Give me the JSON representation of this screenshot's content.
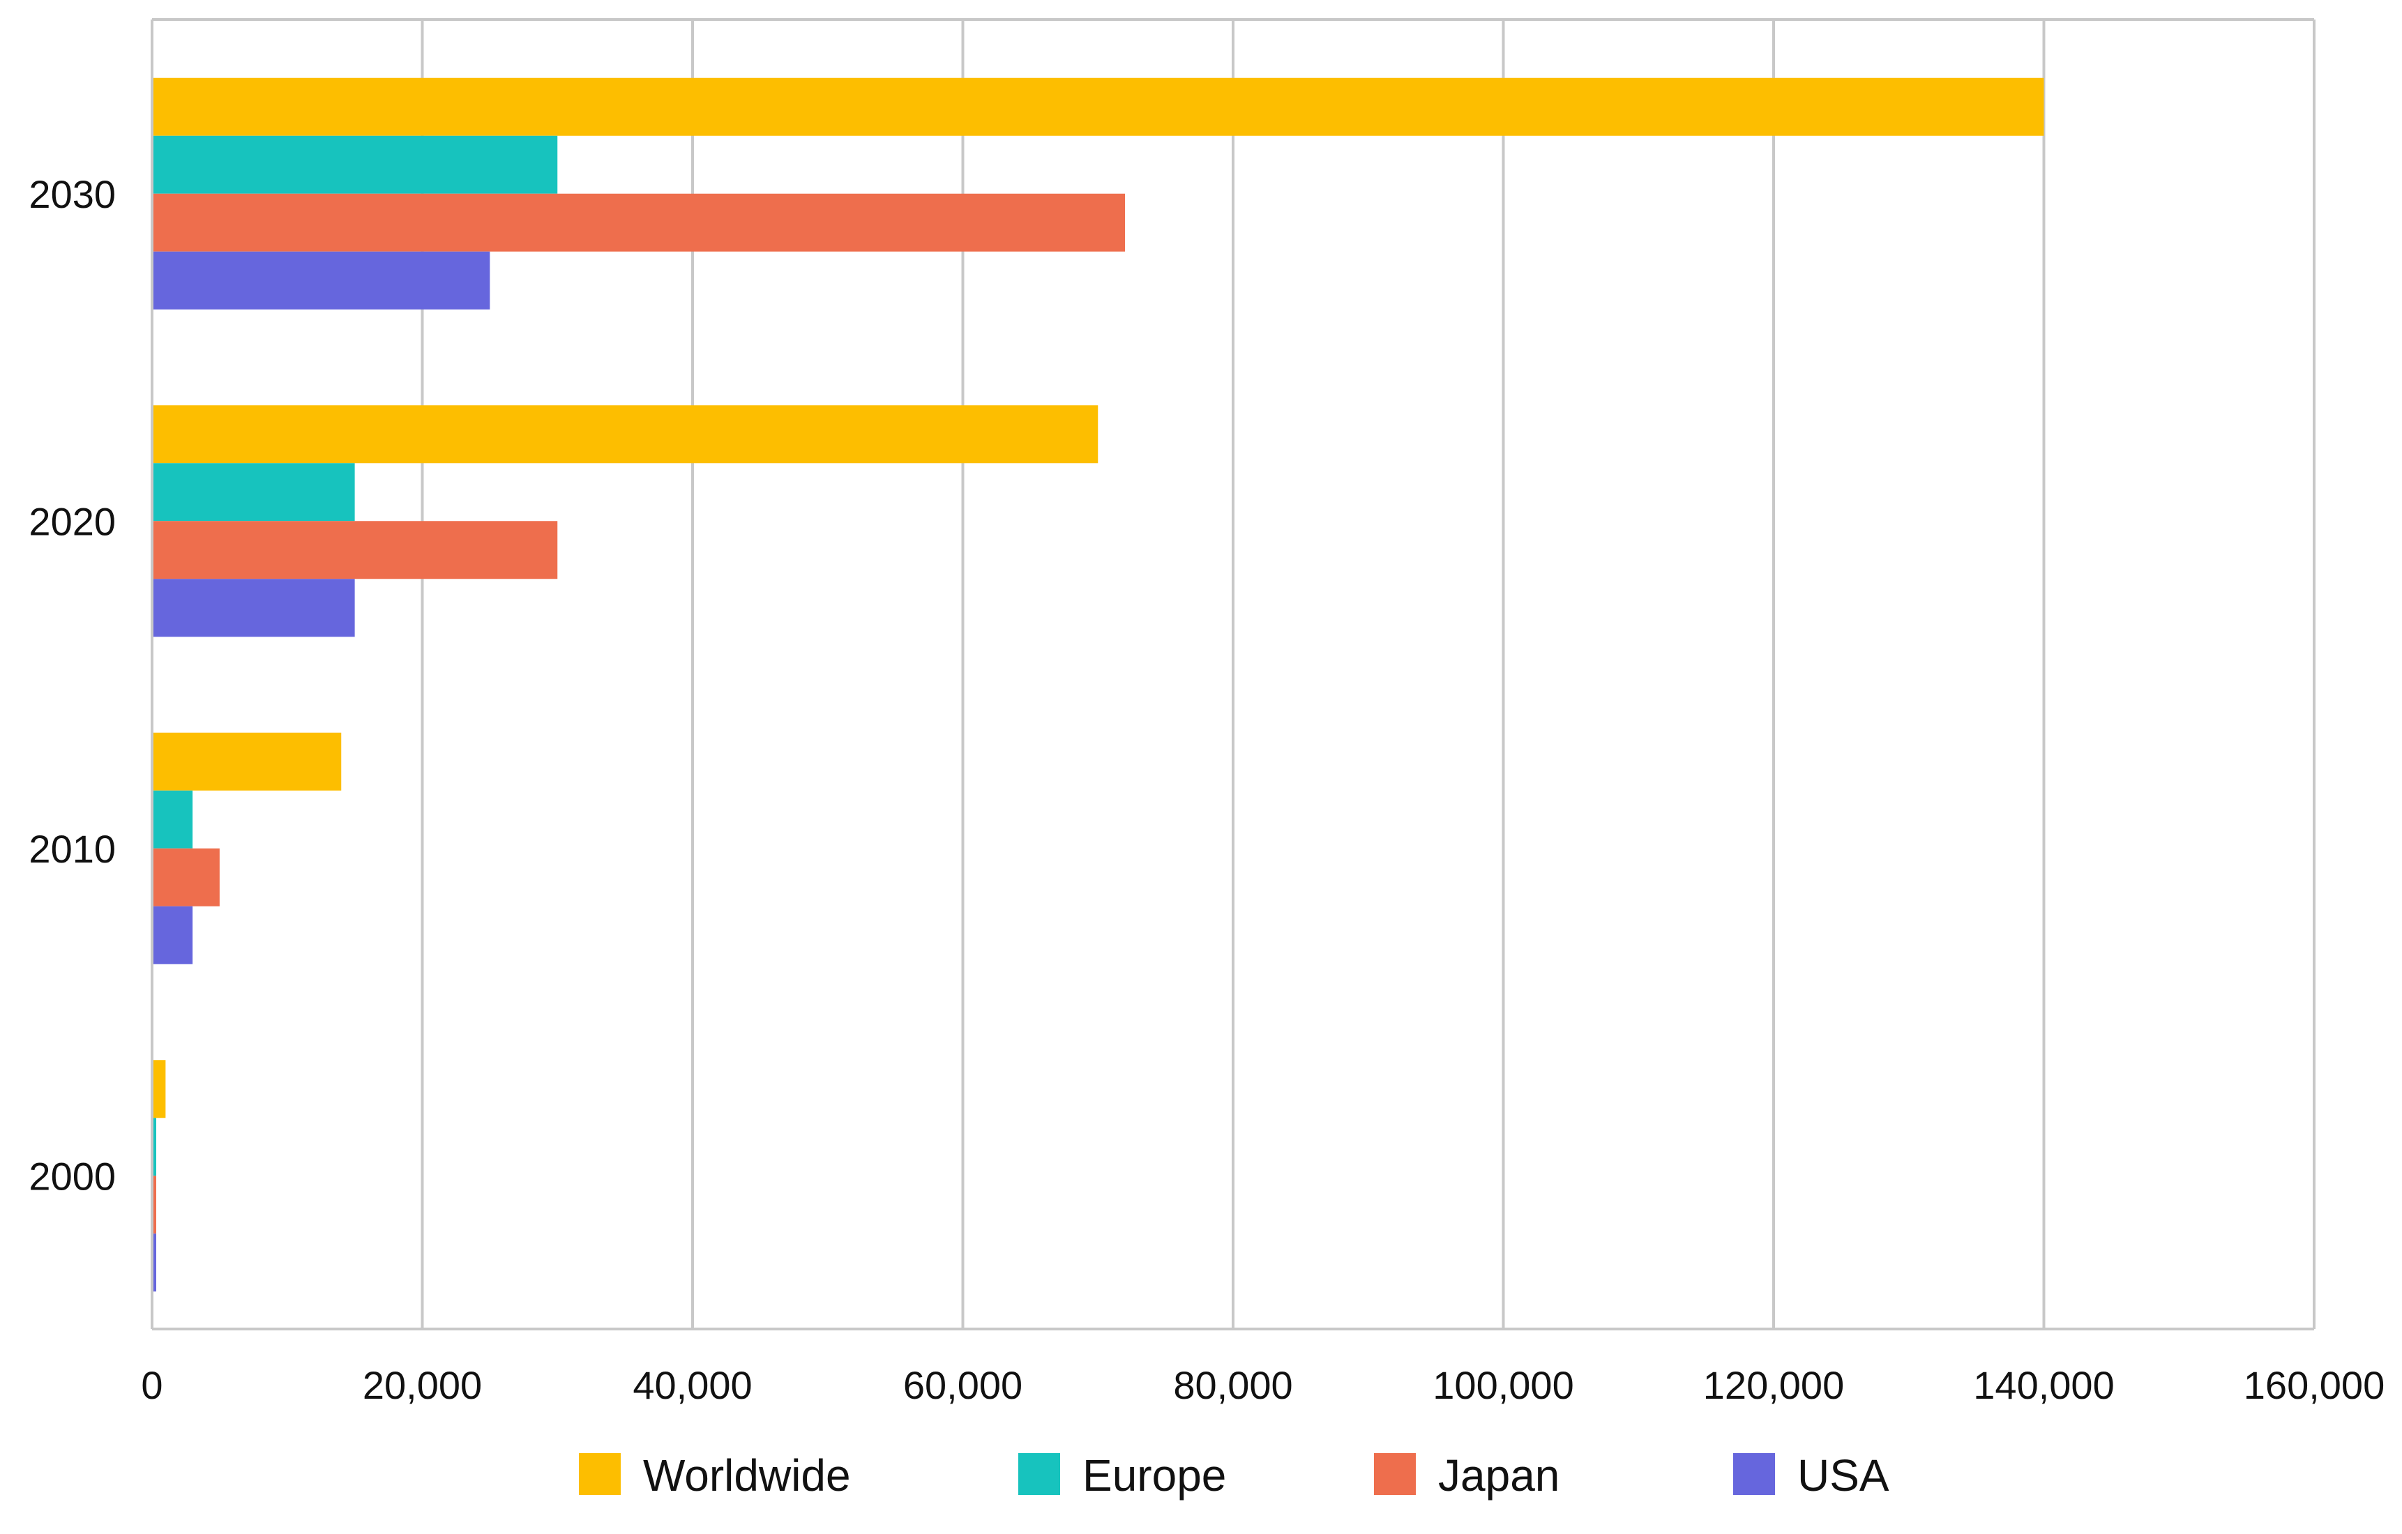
{
  "chart_data": {
    "type": "bar",
    "orientation": "horizontal",
    "title": "",
    "xlabel": "",
    "ylabel": "",
    "categories": [
      "2000",
      "2010",
      "2020",
      "2030"
    ],
    "xlim": [
      0,
      160000
    ],
    "x_ticks": [
      0,
      20000,
      40000,
      60000,
      80000,
      100000,
      120000,
      140000,
      160000
    ],
    "x_tick_labels": [
      "0",
      "20,000",
      "40,000",
      "60,000",
      "80,000",
      "100,000",
      "120,000",
      "140,000",
      "160,000"
    ],
    "grid": true,
    "legend_position": "bottom",
    "series": [
      {
        "name": "Worldwide",
        "color": "#FDBE00",
        "values": [
          1000,
          14000,
          70000,
          140000
        ]
      },
      {
        "name": "Europe",
        "color": "#17C3BE",
        "values": [
          200,
          3000,
          15000,
          30000
        ]
      },
      {
        "name": "Japan",
        "color": "#EE6E4D",
        "values": [
          200,
          5000,
          30000,
          72000
        ]
      },
      {
        "name": "USA",
        "color": "#6666DD",
        "values": [
          200,
          3000,
          15000,
          25000
        ]
      }
    ]
  }
}
